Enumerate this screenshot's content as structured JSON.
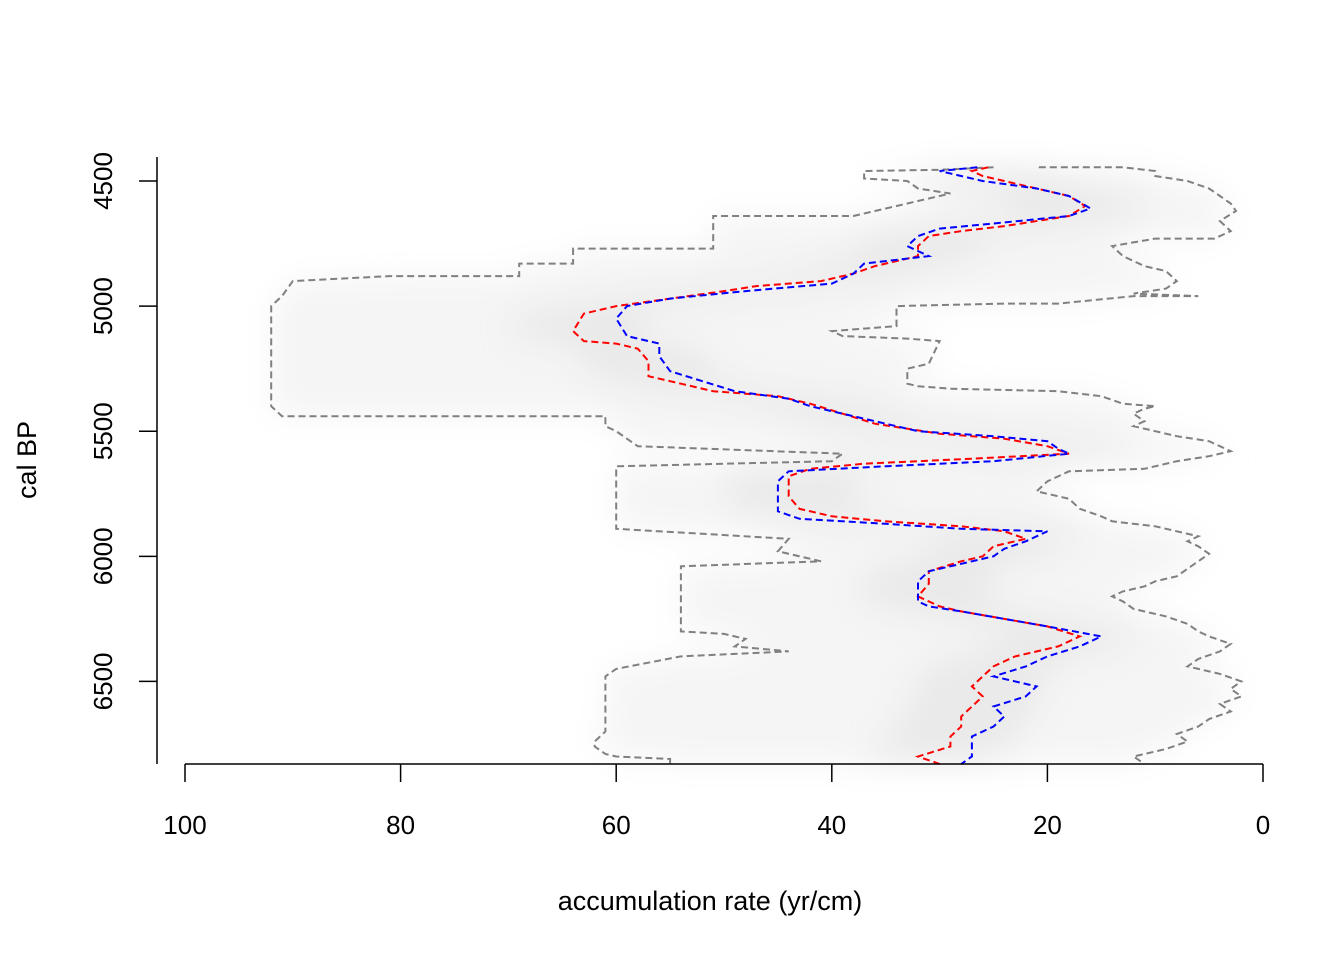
{
  "chart_data": {
    "type": "line",
    "title": "",
    "xlabel": "accumulation rate (yr/cm)",
    "ylabel": "cal BP",
    "xlim": [
      100,
      0
    ],
    "ylim": [
      6830,
      4440
    ],
    "x_ticks": [
      100,
      80,
      60,
      40,
      20,
      0
    ],
    "x_tick_labels": [
      "100",
      "80",
      "60",
      "40",
      "20",
      "0"
    ],
    "y_ticks": [
      4500,
      5000,
      5500,
      6000,
      6500
    ],
    "y_tick_labels": [
      "4500",
      "5000",
      "5500",
      "6000",
      "6500"
    ],
    "grid": false,
    "legend": "none",
    "background": "grey density shading of accumulation rate draws",
    "series": [
      {
        "color": "#808080",
        "style": "dashed",
        "points": [
          [
            20.8,
            4445
          ],
          [
            13,
            4445
          ],
          [
            10,
            4460
          ],
          [
            10,
            4480
          ],
          [
            7,
            4500
          ],
          [
            5,
            4530
          ],
          [
            4,
            4560
          ],
          [
            3,
            4590
          ],
          [
            2.5,
            4620
          ],
          [
            4,
            4660
          ],
          [
            3,
            4700
          ],
          [
            4.5,
            4730
          ],
          [
            10,
            4730
          ],
          [
            14,
            4760
          ],
          [
            13,
            4800
          ],
          [
            11,
            4840
          ],
          [
            9,
            4860
          ],
          [
            8,
            4900
          ],
          [
            9,
            4930
          ],
          [
            12,
            4950
          ],
          [
            6,
            4960
          ],
          [
            12,
            4960
          ],
          [
            19,
            4990
          ],
          [
            24,
            4990
          ],
          [
            34,
            5000
          ],
          [
            34,
            5080
          ],
          [
            37,
            5090
          ],
          [
            40,
            5100
          ],
          [
            39,
            5120
          ],
          [
            33,
            5130
          ],
          [
            30,
            5140
          ],
          [
            31,
            5230
          ],
          [
            33,
            5250
          ],
          [
            33,
            5310
          ],
          [
            32,
            5320
          ],
          [
            29,
            5330
          ],
          [
            19,
            5340
          ],
          [
            15,
            5360
          ],
          [
            13,
            5390
          ],
          [
            10,
            5400
          ],
          [
            11,
            5410
          ],
          [
            12,
            5430
          ],
          [
            11,
            5460
          ],
          [
            12,
            5480
          ],
          [
            10,
            5500
          ],
          [
            8,
            5520
          ],
          [
            5,
            5540
          ],
          [
            4,
            5560
          ],
          [
            3,
            5580
          ],
          [
            5,
            5600
          ],
          [
            8,
            5620
          ],
          [
            11,
            5650
          ],
          [
            18,
            5660
          ],
          [
            20,
            5700
          ],
          [
            21,
            5740
          ],
          [
            18,
            5770
          ],
          [
            17,
            5810
          ],
          [
            15,
            5840
          ],
          [
            14,
            5860
          ],
          [
            10,
            5880
          ],
          [
            8,
            5900
          ],
          [
            6,
            5920
          ],
          [
            7,
            5940
          ],
          [
            6,
            5960
          ],
          [
            5,
            5990
          ],
          [
            6,
            6020
          ],
          [
            7,
            6050
          ],
          [
            8,
            6080
          ],
          [
            10,
            6100
          ],
          [
            11,
            6120
          ],
          [
            13,
            6140
          ],
          [
            14,
            6160
          ],
          [
            13,
            6180
          ],
          [
            12,
            6210
          ],
          [
            9,
            6240
          ],
          [
            7,
            6270
          ],
          [
            6,
            6300
          ],
          [
            5,
            6320
          ],
          [
            3,
            6350
          ],
          [
            4,
            6380
          ],
          [
            6,
            6410
          ],
          [
            7,
            6440
          ],
          [
            4,
            6470
          ],
          [
            2,
            6500
          ],
          [
            3,
            6530
          ],
          [
            2,
            6560
          ],
          [
            4,
            6590
          ],
          [
            3,
            6620
          ],
          [
            5,
            6650
          ],
          [
            6,
            6680
          ],
          [
            8,
            6710
          ],
          [
            7,
            6740
          ],
          [
            9,
            6770
          ],
          [
            11,
            6790
          ],
          [
            12,
            6800
          ],
          [
            11,
            6830
          ]
        ]
      },
      {
        "color": "#808080",
        "style": "dashed",
        "points": [
          [
            25,
            4445
          ],
          [
            30,
            4455
          ],
          [
            37,
            4460
          ],
          [
            37,
            4490
          ],
          [
            33,
            4500
          ],
          [
            32,
            4530
          ],
          [
            29,
            4550
          ],
          [
            31,
            4570
          ],
          [
            34,
            4600
          ],
          [
            36,
            4620
          ],
          [
            38,
            4640
          ],
          [
            51,
            4640
          ],
          [
            51,
            4700
          ],
          [
            51,
            4770
          ],
          [
            64,
            4770
          ],
          [
            64,
            4830
          ],
          [
            69,
            4830
          ],
          [
            69,
            4880
          ],
          [
            81,
            4880
          ],
          [
            90,
            4900
          ],
          [
            91,
            4960
          ],
          [
            92,
            5000
          ],
          [
            92,
            5200
          ],
          [
            92,
            5300
          ],
          [
            92,
            5400
          ],
          [
            91,
            5440
          ],
          [
            61,
            5440
          ],
          [
            61,
            5480
          ],
          [
            60,
            5500
          ],
          [
            58,
            5560
          ],
          [
            39,
            5590
          ],
          [
            40,
            5620
          ],
          [
            60,
            5640
          ],
          [
            60,
            5700
          ],
          [
            60,
            5850
          ],
          [
            60,
            5890
          ],
          [
            52,
            5910
          ],
          [
            44,
            5930
          ],
          [
            45,
            5980
          ],
          [
            41,
            6020
          ],
          [
            54,
            6040
          ],
          [
            54,
            6100
          ],
          [
            54,
            6300
          ],
          [
            50,
            6310
          ],
          [
            48,
            6330
          ],
          [
            49,
            6360
          ],
          [
            44,
            6380
          ],
          [
            54,
            6400
          ],
          [
            60,
            6450
          ],
          [
            61,
            6480
          ],
          [
            61,
            6500
          ],
          [
            61,
            6600
          ],
          [
            61,
            6700
          ],
          [
            62,
            6740
          ],
          [
            62,
            6760
          ],
          [
            61,
            6790
          ],
          [
            60,
            6800
          ],
          [
            55,
            6810
          ],
          [
            55,
            6830
          ]
        ]
      },
      {
        "color": "#ff0000",
        "style": "dashed",
        "points": [
          [
            25.5,
            4445
          ],
          [
            27,
            4460
          ],
          [
            26,
            4480
          ],
          [
            24,
            4500
          ],
          [
            21,
            4530
          ],
          [
            18,
            4560
          ],
          [
            16.5,
            4600
          ],
          [
            18,
            4640
          ],
          [
            24,
            4680
          ],
          [
            28,
            4700
          ],
          [
            31,
            4720
          ],
          [
            32,
            4760
          ],
          [
            32,
            4800
          ],
          [
            36,
            4840
          ],
          [
            38,
            4870
          ],
          [
            41,
            4900
          ],
          [
            47,
            4920
          ],
          [
            50,
            4940
          ],
          [
            55,
            4970
          ],
          [
            60,
            5000
          ],
          [
            63,
            5030
          ],
          [
            64,
            5100
          ],
          [
            63,
            5140
          ],
          [
            60,
            5150
          ],
          [
            58,
            5170
          ],
          [
            57,
            5220
          ],
          [
            57,
            5280
          ],
          [
            54,
            5310
          ],
          [
            51,
            5340
          ],
          [
            45,
            5360
          ],
          [
            42,
            5390
          ],
          [
            39,
            5430
          ],
          [
            36,
            5470
          ],
          [
            30,
            5510
          ],
          [
            24,
            5530
          ],
          [
            20,
            5560
          ],
          [
            18,
            5590
          ],
          [
            27,
            5610
          ],
          [
            37,
            5630
          ],
          [
            42,
            5650
          ],
          [
            44,
            5680
          ],
          [
            44,
            5760
          ],
          [
            43,
            5810
          ],
          [
            40,
            5840
          ],
          [
            35,
            5860
          ],
          [
            28,
            5880
          ],
          [
            24,
            5900
          ],
          [
            22,
            5930
          ],
          [
            25,
            5960
          ],
          [
            26,
            6000
          ],
          [
            28,
            6020
          ],
          [
            31,
            6060
          ],
          [
            31,
            6110
          ],
          [
            32,
            6160
          ],
          [
            30,
            6200
          ],
          [
            28,
            6220
          ],
          [
            24,
            6250
          ],
          [
            20,
            6280
          ],
          [
            17,
            6320
          ],
          [
            19,
            6360
          ],
          [
            23,
            6400
          ],
          [
            25,
            6440
          ],
          [
            26,
            6480
          ],
          [
            27,
            6520
          ],
          [
            26,
            6560
          ],
          [
            27,
            6600
          ],
          [
            28,
            6640
          ],
          [
            28,
            6680
          ],
          [
            29,
            6720
          ],
          [
            29,
            6760
          ],
          [
            32,
            6800
          ],
          [
            30,
            6830
          ]
        ]
      },
      {
        "color": "#0000ff",
        "style": "dashed",
        "points": [
          [
            26.5,
            4445
          ],
          [
            30,
            4460
          ],
          [
            28,
            4480
          ],
          [
            26,
            4500
          ],
          [
            21,
            4530
          ],
          [
            18,
            4560
          ],
          [
            16,
            4610
          ],
          [
            18,
            4640
          ],
          [
            25,
            4670
          ],
          [
            30,
            4690
          ],
          [
            32,
            4720
          ],
          [
            33,
            4760
          ],
          [
            31,
            4800
          ],
          [
            37,
            4830
          ],
          [
            38,
            4870
          ],
          [
            40,
            4910
          ],
          [
            48,
            4940
          ],
          [
            55,
            4970
          ],
          [
            59,
            5000
          ],
          [
            60,
            5050
          ],
          [
            59,
            5120
          ],
          [
            56,
            5150
          ],
          [
            56,
            5200
          ],
          [
            55,
            5260
          ],
          [
            52,
            5300
          ],
          [
            49,
            5340
          ],
          [
            44,
            5370
          ],
          [
            42,
            5400
          ],
          [
            39,
            5430
          ],
          [
            36,
            5460
          ],
          [
            32,
            5500
          ],
          [
            25,
            5520
          ],
          [
            20,
            5540
          ],
          [
            19,
            5570
          ],
          [
            18,
            5590
          ],
          [
            25,
            5620
          ],
          [
            35,
            5640
          ],
          [
            44,
            5660
          ],
          [
            45,
            5700
          ],
          [
            45,
            5820
          ],
          [
            43,
            5850
          ],
          [
            35,
            5870
          ],
          [
            28,
            5890
          ],
          [
            20,
            5900
          ],
          [
            22,
            5940
          ],
          [
            24,
            5970
          ],
          [
            25,
            6000
          ],
          [
            28,
            6030
          ],
          [
            31,
            6060
          ],
          [
            32,
            6100
          ],
          [
            32,
            6180
          ],
          [
            31,
            6200
          ],
          [
            28,
            6220
          ],
          [
            24,
            6250
          ],
          [
            20,
            6280
          ],
          [
            15,
            6320
          ],
          [
            17,
            6360
          ],
          [
            20,
            6400
          ],
          [
            22,
            6440
          ],
          [
            25,
            6480
          ],
          [
            21,
            6520
          ],
          [
            22,
            6560
          ],
          [
            25,
            6600
          ],
          [
            24,
            6640
          ],
          [
            25,
            6680
          ],
          [
            27,
            6720
          ],
          [
            27,
            6760
          ],
          [
            27,
            6800
          ],
          [
            28,
            6830
          ]
        ]
      }
    ]
  }
}
